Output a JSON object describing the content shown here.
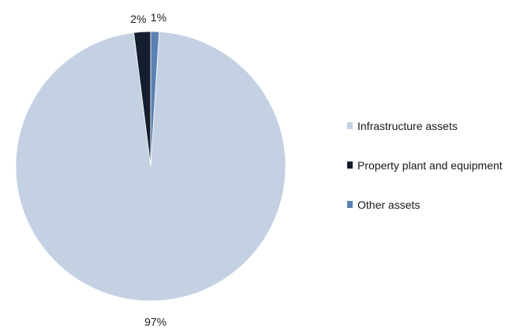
{
  "chart_data": {
    "type": "pie",
    "title": "",
    "slices": [
      {
        "label": "Infrastructure assets",
        "value": 97,
        "display": "97%",
        "color": "#c3d1e3"
      },
      {
        "label": "Property plant and equipment",
        "value": 2,
        "display": "2%",
        "color": "#151e2c"
      },
      {
        "label": "Other assets",
        "value": 1,
        "display": "1%",
        "color": "#5a81b4"
      }
    ],
    "start_angle_deg": 0,
    "direction": "counterclockwise",
    "legend_placement": "right"
  }
}
